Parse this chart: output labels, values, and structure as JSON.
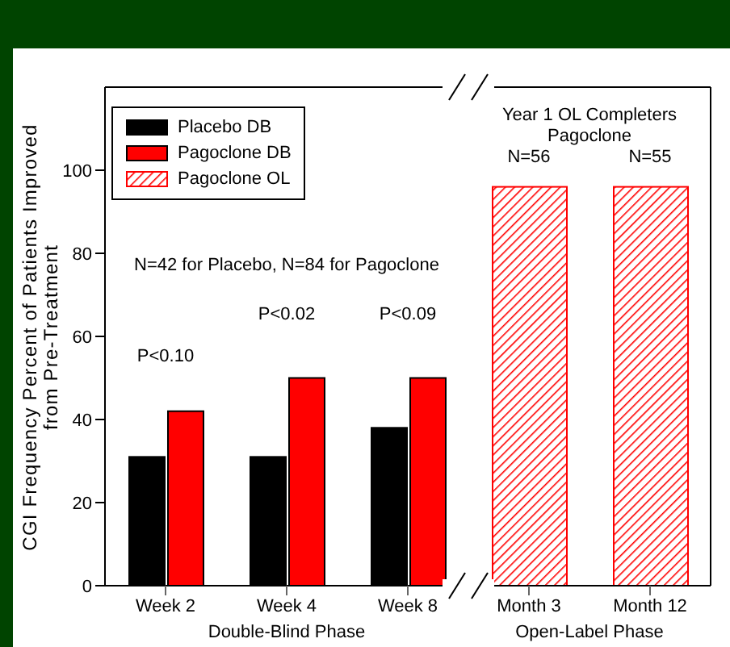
{
  "chart_data": {
    "type": "bar",
    "ylabel": "CGI Frequency Percent of Patients Improved\nfrom Pre-Treatment",
    "categories": [
      "Week 2",
      "Week 4",
      "Week 8",
      "Month 3",
      "Month 12"
    ],
    "series": [
      {
        "name": "Placebo DB",
        "color": "#000000",
        "values": [
          31,
          31,
          38,
          null,
          null
        ]
      },
      {
        "name": "Pagoclone DB",
        "color": "#ff0000",
        "values": [
          42,
          50,
          50,
          null,
          null
        ]
      },
      {
        "name": "Pagoclone OL",
        "color": "#ff0000",
        "values": [
          null,
          null,
          null,
          96,
          96
        ]
      }
    ],
    "ylim": [
      0,
      120
    ],
    "yticks": [
      0,
      20,
      40,
      60,
      80,
      100
    ],
    "legend": "top left",
    "annotations": [
      "P<0.10",
      "P<0.02",
      "P<0.09",
      "N=56",
      "N=55",
      "N=42 for Placebo, N=84 for Pagoclone",
      "Year 1 OL Completers\nPagoclone",
      "Double-Blind Phase",
      "Open-Label Phase"
    ]
  }
}
